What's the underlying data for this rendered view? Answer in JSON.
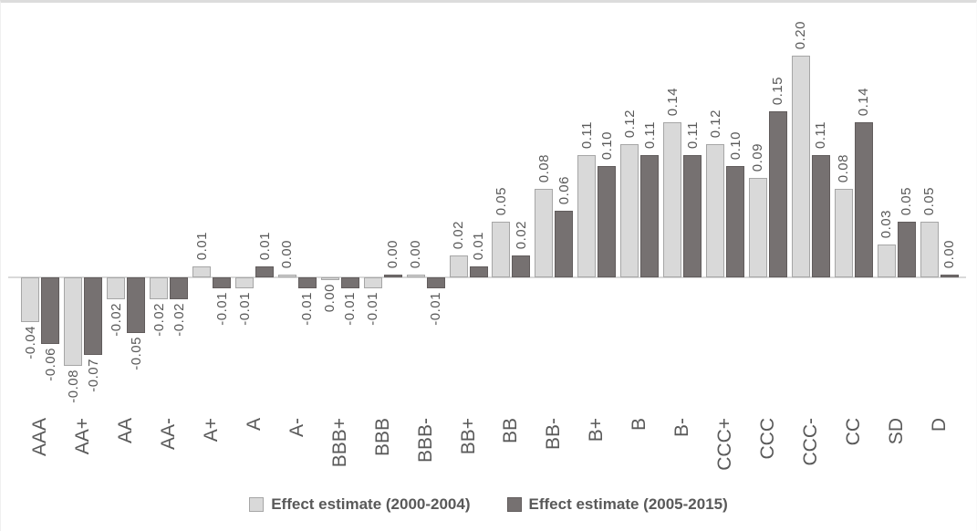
{
  "figure": {
    "background": "#ffffff",
    "frame_line_color": "#dcdcdc"
  },
  "chart_data": {
    "type": "bar",
    "title": "",
    "xlabel": "",
    "ylabel": "",
    "categories": [
      "AAA",
      "AA+",
      "AA",
      "AA-",
      "A+",
      "A",
      "A-",
      "BBB+",
      "BBB",
      "BBB-",
      "BB+",
      "BB",
      "BB-",
      "B+",
      "B",
      "B-",
      "CCC+",
      "CCC",
      "CCC-",
      "CC",
      "SD",
      "D"
    ],
    "series": [
      {
        "name": "Effect estimate (2000-2004)",
        "color": "#d9d9d9",
        "border_color": "#a6a6a6",
        "values": [
          -0.04,
          -0.08,
          -0.02,
          -0.02,
          0.01,
          -0.01,
          0.0,
          0.0,
          -0.01,
          0.0,
          0.02,
          0.05,
          0.08,
          0.11,
          0.12,
          0.14,
          0.12,
          0.09,
          0.2,
          0.08,
          0.03,
          0.05
        ],
        "labels": [
          "-0.04",
          "-0.08",
          "-0.02",
          "-0.02",
          "0.01",
          "-0.01",
          "0.00",
          "0.00",
          "-0.01",
          "0.00",
          "0.02",
          "0.05",
          "0.08",
          "0.11",
          "0.12",
          "0.14",
          "0.12",
          "0.09",
          "0.20",
          "0.08",
          "0.03",
          "0.05"
        ],
        "label_sides": [
          "below",
          "below",
          "below",
          "below",
          "above",
          "below",
          "above",
          "below",
          "below",
          "above",
          "above",
          "above",
          "above",
          "above",
          "above",
          "above",
          "above",
          "above",
          "above",
          "above",
          "above",
          "above"
        ]
      },
      {
        "name": "Effect estimate (2005-2015)",
        "color": "#767171",
        "border_color": "#615c5c",
        "values": [
          -0.06,
          -0.07,
          -0.05,
          -0.02,
          -0.01,
          0.01,
          -0.01,
          -0.01,
          0.0,
          -0.01,
          0.01,
          0.02,
          0.06,
          0.1,
          0.11,
          0.11,
          0.1,
          0.15,
          0.11,
          0.14,
          0.05,
          0.0
        ],
        "labels": [
          "-0.06",
          "-0.07",
          "-0.05",
          "-0.02",
          "-0.01",
          "0.01",
          "-0.01",
          "-0.01",
          "0.00",
          "-0.01",
          "0.01",
          "0.02",
          "0.06",
          "0.10",
          "0.11",
          "0.11",
          "0.10",
          "0.15",
          "0.11",
          "0.14",
          "0.05",
          "0.00"
        ],
        "label_sides": [
          "below",
          "below",
          "below",
          "below",
          "below",
          "above",
          "below",
          "below",
          "above",
          "below",
          "above",
          "above",
          "above",
          "above",
          "above",
          "above",
          "above",
          "above",
          "above",
          "above",
          "above",
          "above"
        ]
      }
    ],
    "ylim": [
      -0.1,
      0.22
    ],
    "grid": false,
    "y_axis_visible": false,
    "axis_line_color": "#d9d9d9",
    "data_label_color": "#595959",
    "category_label_color": "#595959",
    "legend_position": "bottom",
    "legend_text_color": "#595959"
  }
}
